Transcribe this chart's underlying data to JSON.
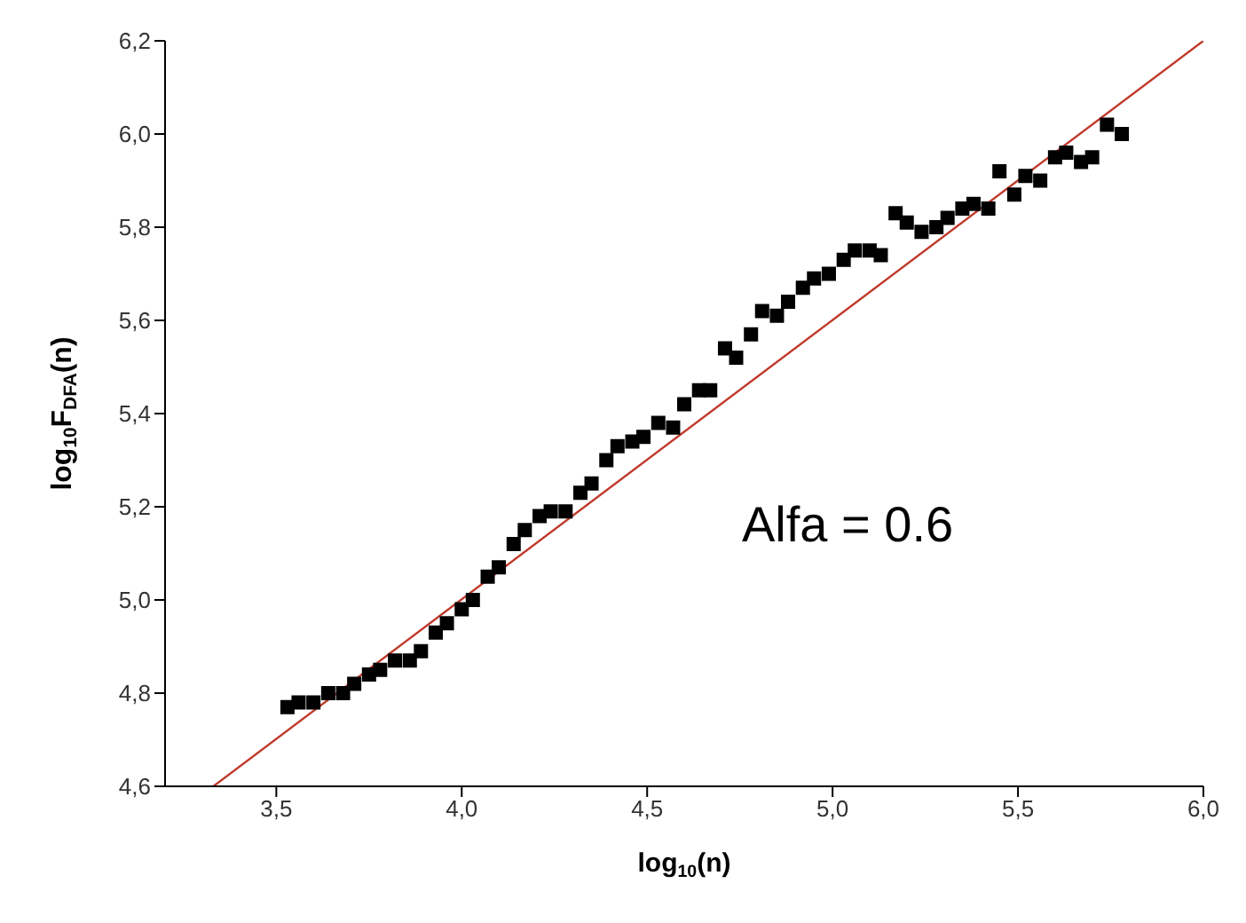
{
  "chart_data": {
    "type": "scatter",
    "xlabel": "log$_{10}$(n)",
    "ylabel": "log$_{10}$F$_{DFA}$(n)",
    "xlim": [
      3.2,
      6.0
    ],
    "xticks": [
      {
        "value": 3.5,
        "label": "3,5"
      },
      {
        "value": 4.0,
        "label": "4,0"
      },
      {
        "value": 4.5,
        "label": "4,5"
      },
      {
        "value": 5.0,
        "label": "5,0"
      },
      {
        "value": 5.5,
        "label": "5,5"
      },
      {
        "value": 6.0,
        "label": "6,0"
      }
    ],
    "ylim": [
      4.6,
      6.2
    ],
    "yticks": [
      {
        "value": 4.6,
        "label": "4,6"
      },
      {
        "value": 4.8,
        "label": "4,8"
      },
      {
        "value": 5.0,
        "label": "5,0"
      },
      {
        "value": 5.2,
        "label": "5,2"
      },
      {
        "value": 5.4,
        "label": "5,4"
      },
      {
        "value": 5.6,
        "label": "5,6"
      },
      {
        "value": 5.8,
        "label": "5,8"
      },
      {
        "value": 6.0,
        "label": "6,0"
      },
      {
        "value": 6.2,
        "label": "6,2"
      }
    ],
    "grid": false,
    "annotations": [
      "Alfa = 0.6"
    ],
    "series": [
      {
        "color": "#000000",
        "marker": "square",
        "x": [
          3.53,
          3.56,
          3.6,
          3.64,
          3.68,
          3.71,
          3.75,
          3.78,
          3.82,
          3.86,
          3.89,
          3.93,
          3.96,
          4.0,
          4.03,
          4.07,
          4.1,
          4.14,
          4.17,
          4.21,
          4.24,
          4.28,
          4.32,
          4.35,
          4.39,
          4.42,
          4.46,
          4.49,
          4.53,
          4.57,
          4.6,
          4.64,
          4.67,
          4.71,
          4.74,
          4.78,
          4.81,
          4.85,
          4.88,
          4.92,
          4.95,
          4.99,
          5.03,
          5.06,
          5.1,
          5.13,
          5.17,
          5.2,
          5.24,
          5.28,
          5.31,
          5.35,
          5.38,
          5.42,
          5.45,
          5.49,
          5.52,
          5.56,
          5.6,
          5.63,
          5.67,
          5.7,
          5.74,
          5.78
        ],
        "values": [
          4.77,
          4.78,
          4.78,
          4.8,
          4.8,
          4.82,
          4.84,
          4.85,
          4.87,
          4.87,
          4.89,
          4.93,
          4.95,
          4.98,
          5.0,
          5.05,
          5.07,
          5.12,
          5.15,
          5.18,
          5.19,
          5.19,
          5.23,
          5.25,
          5.3,
          5.33,
          5.34,
          5.35,
          5.38,
          5.37,
          5.42,
          5.45,
          5.45,
          5.54,
          5.52,
          5.57,
          5.62,
          5.61,
          5.64,
          5.67,
          5.69,
          5.7,
          5.73,
          5.75,
          5.75,
          5.74,
          5.83,
          5.81,
          5.79,
          5.8,
          5.82,
          5.84,
          5.85,
          5.84,
          5.92,
          5.87,
          5.91,
          5.9,
          5.95,
          5.96,
          5.94,
          5.95,
          6.02,
          6.0
        ]
      },
      {
        "type": "line",
        "color": "#c0392b",
        "marker": "none",
        "line_style": "solid",
        "x": [
          3.33,
          6.0
        ],
        "values": [
          4.6,
          6.2
        ]
      }
    ]
  }
}
